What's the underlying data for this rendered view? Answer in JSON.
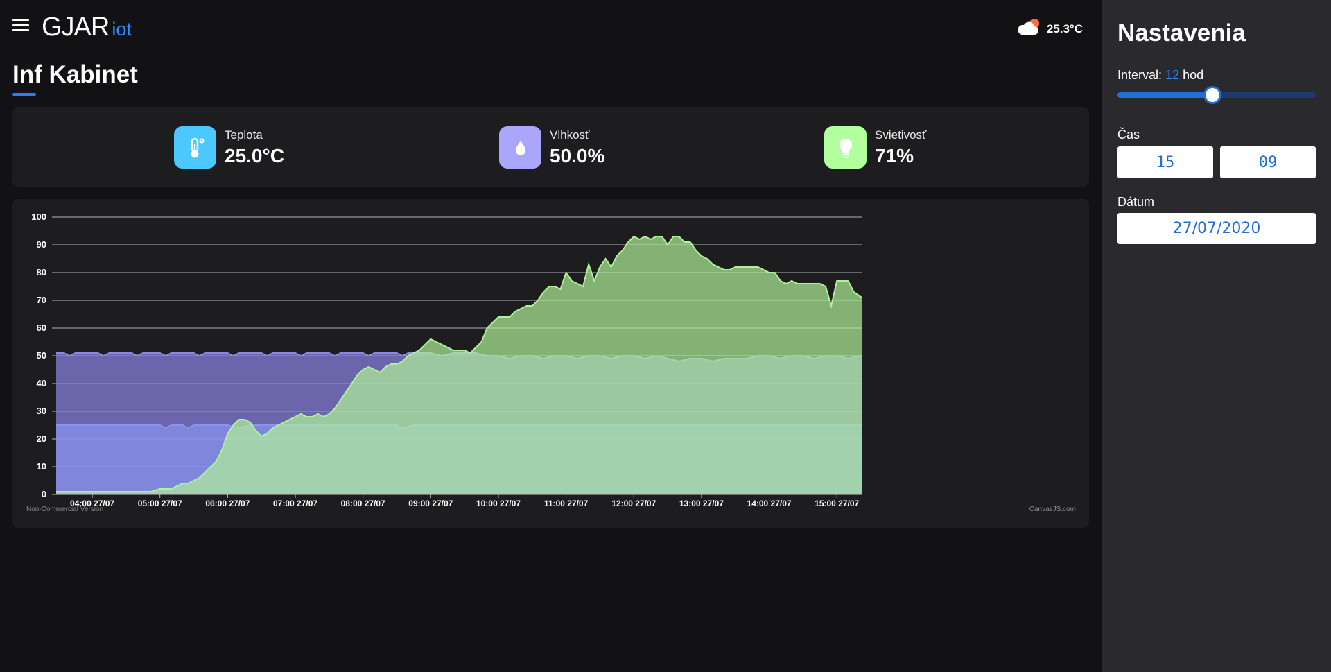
{
  "header": {
    "brand": "GJAR",
    "brand_sub": "iot",
    "weather_icon": "cloud-sun-icon",
    "weather_temp": "25.3°C"
  },
  "page": {
    "title": "Inf Kabinet"
  },
  "stats": [
    {
      "label": "Teplota",
      "value": "25.0°C",
      "icon": "thermometer-icon",
      "color": "#4dc8ff"
    },
    {
      "label": "Vlhkosť",
      "value": "50.0%",
      "icon": "water-drop-icon",
      "color": "#a9a6fb"
    },
    {
      "label": "Svietivosť",
      "value": "71%",
      "icon": "lightbulb-icon",
      "color": "#b2ff9e"
    }
  ],
  "chart_data": {
    "type": "area",
    "xlabel": "",
    "ylabel": "",
    "ylim": [
      0,
      100
    ],
    "yticks": [
      0,
      10,
      20,
      30,
      40,
      50,
      60,
      70,
      80,
      90,
      100
    ],
    "x_range": [
      "03:28",
      "15:22"
    ],
    "x_ticks": [
      "04:00 27/07",
      "05:00 27/07",
      "06:00 27/07",
      "07:00 27/07",
      "08:00 27/07",
      "09:00 27/07",
      "10:00 27/07",
      "11:00 27/07",
      "12:00 27/07",
      "13:00 27/07",
      "14:00 27/07",
      "15:00 27/07"
    ],
    "grid": true,
    "watermark_left": "Non-Commercial Version",
    "watermark_right": "CanvasJS.com",
    "series": [
      {
        "color": "#7fb4ff",
        "points": [
          [
            "03:28",
            25
          ],
          [
            "04:00",
            25
          ],
          [
            "04:30",
            25
          ],
          [
            "05:00",
            25
          ],
          [
            "05:05",
            24
          ],
          [
            "05:10",
            25
          ],
          [
            "05:20",
            25
          ],
          [
            "05:25",
            24
          ],
          [
            "05:30",
            25
          ],
          [
            "06:00",
            25
          ],
          [
            "06:10",
            24
          ],
          [
            "06:20",
            25
          ],
          [
            "07:00",
            25
          ],
          [
            "08:00",
            25
          ],
          [
            "08:30",
            25
          ],
          [
            "08:35",
            24
          ],
          [
            "08:45",
            25
          ],
          [
            "10:00",
            25
          ],
          [
            "11:00",
            25
          ],
          [
            "12:00",
            25
          ],
          [
            "13:00",
            25
          ],
          [
            "14:00",
            25
          ],
          [
            "15:00",
            25
          ],
          [
            "15:22",
            25
          ]
        ]
      },
      {
        "color": "#8d86e8",
        "points": [
          [
            "03:28",
            51
          ],
          [
            "03:35",
            51
          ],
          [
            "03:40",
            50
          ],
          [
            "03:45",
            51
          ],
          [
            "04:05",
            51
          ],
          [
            "04:10",
            50
          ],
          [
            "04:15",
            51
          ],
          [
            "04:35",
            51
          ],
          [
            "04:40",
            50
          ],
          [
            "04:45",
            51
          ],
          [
            "05:00",
            51
          ],
          [
            "05:05",
            50
          ],
          [
            "05:10",
            51
          ],
          [
            "05:30",
            51
          ],
          [
            "05:35",
            50
          ],
          [
            "05:40",
            51
          ],
          [
            "06:00",
            51
          ],
          [
            "06:05",
            50
          ],
          [
            "06:10",
            51
          ],
          [
            "06:30",
            51
          ],
          [
            "06:35",
            50
          ],
          [
            "06:40",
            51
          ],
          [
            "07:00",
            51
          ],
          [
            "07:05",
            50
          ],
          [
            "07:10",
            51
          ],
          [
            "07:30",
            51
          ],
          [
            "07:35",
            50
          ],
          [
            "07:40",
            51
          ],
          [
            "08:00",
            51
          ],
          [
            "08:05",
            50
          ],
          [
            "08:10",
            51
          ],
          [
            "08:30",
            51
          ],
          [
            "08:35",
            50
          ],
          [
            "08:40",
            51
          ],
          [
            "09:00",
            51
          ],
          [
            "09:10",
            50
          ],
          [
            "09:20",
            51
          ],
          [
            "09:40",
            51
          ],
          [
            "09:50",
            50
          ],
          [
            "10:00",
            50
          ],
          [
            "10:10",
            49
          ],
          [
            "10:20",
            50
          ],
          [
            "10:30",
            50
          ],
          [
            "10:40",
            49
          ],
          [
            "10:50",
            50
          ],
          [
            "11:00",
            50
          ],
          [
            "11:10",
            49
          ],
          [
            "11:20",
            50
          ],
          [
            "11:30",
            50
          ],
          [
            "11:40",
            49
          ],
          [
            "11:50",
            50
          ],
          [
            "12:00",
            50
          ],
          [
            "12:10",
            49
          ],
          [
            "12:20",
            50
          ],
          [
            "12:30",
            49
          ],
          [
            "12:40",
            48
          ],
          [
            "12:50",
            49
          ],
          [
            "13:00",
            49
          ],
          [
            "13:10",
            48
          ],
          [
            "13:20",
            49
          ],
          [
            "13:30",
            49
          ],
          [
            "13:40",
            49
          ],
          [
            "13:50",
            50
          ],
          [
            "14:00",
            50
          ],
          [
            "14:10",
            49
          ],
          [
            "14:20",
            50
          ],
          [
            "14:30",
            50
          ],
          [
            "14:40",
            49
          ],
          [
            "14:50",
            50
          ],
          [
            "15:00",
            50
          ],
          [
            "15:10",
            49
          ],
          [
            "15:20",
            50
          ],
          [
            "15:22",
            50
          ]
        ]
      },
      {
        "color": "#b0f29a",
        "points": [
          [
            "03:28",
            1
          ],
          [
            "04:00",
            1
          ],
          [
            "04:30",
            1
          ],
          [
            "04:52",
            1
          ],
          [
            "05:00",
            2
          ],
          [
            "05:10",
            2
          ],
          [
            "05:15",
            3
          ],
          [
            "05:20",
            4
          ],
          [
            "05:25",
            4
          ],
          [
            "05:30",
            5
          ],
          [
            "05:35",
            6
          ],
          [
            "05:40",
            8
          ],
          [
            "05:45",
            10
          ],
          [
            "05:50",
            12
          ],
          [
            "05:55",
            16
          ],
          [
            "06:00",
            22
          ],
          [
            "06:05",
            25
          ],
          [
            "06:10",
            27
          ],
          [
            "06:15",
            27
          ],
          [
            "06:20",
            26
          ],
          [
            "06:25",
            23
          ],
          [
            "06:30",
            21
          ],
          [
            "06:35",
            22
          ],
          [
            "06:40",
            24
          ],
          [
            "06:45",
            25
          ],
          [
            "06:50",
            26
          ],
          [
            "06:55",
            27
          ],
          [
            "07:00",
            28
          ],
          [
            "07:05",
            29
          ],
          [
            "07:10",
            28
          ],
          [
            "07:15",
            28
          ],
          [
            "07:20",
            29
          ],
          [
            "07:25",
            28
          ],
          [
            "07:30",
            29
          ],
          [
            "07:35",
            31
          ],
          [
            "07:40",
            34
          ],
          [
            "07:45",
            37
          ],
          [
            "07:50",
            40
          ],
          [
            "07:55",
            43
          ],
          [
            "08:00",
            45
          ],
          [
            "08:05",
            46
          ],
          [
            "08:10",
            45
          ],
          [
            "08:15",
            44
          ],
          [
            "08:20",
            46
          ],
          [
            "08:25",
            47
          ],
          [
            "08:30",
            47
          ],
          [
            "08:35",
            48
          ],
          [
            "08:40",
            50
          ],
          [
            "08:45",
            51
          ],
          [
            "08:50",
            52
          ],
          [
            "08:55",
            54
          ],
          [
            "09:00",
            56
          ],
          [
            "09:05",
            55
          ],
          [
            "09:10",
            54
          ],
          [
            "09:15",
            53
          ],
          [
            "09:20",
            52
          ],
          [
            "09:25",
            52
          ],
          [
            "09:30",
            52
          ],
          [
            "09:35",
            51
          ],
          [
            "09:40",
            53
          ],
          [
            "09:45",
            55
          ],
          [
            "09:50",
            60
          ],
          [
            "09:55",
            62
          ],
          [
            "10:00",
            64
          ],
          [
            "10:05",
            64
          ],
          [
            "10:10",
            64
          ],
          [
            "10:15",
            66
          ],
          [
            "10:20",
            67
          ],
          [
            "10:25",
            68
          ],
          [
            "10:30",
            68
          ],
          [
            "10:35",
            70
          ],
          [
            "10:40",
            73
          ],
          [
            "10:45",
            75
          ],
          [
            "10:50",
            75
          ],
          [
            "10:55",
            74
          ],
          [
            "11:00",
            80
          ],
          [
            "11:05",
            77
          ],
          [
            "11:10",
            76
          ],
          [
            "11:15",
            75
          ],
          [
            "11:20",
            83
          ],
          [
            "11:25",
            77
          ],
          [
            "11:30",
            82
          ],
          [
            "11:35",
            85
          ],
          [
            "11:40",
            82
          ],
          [
            "11:45",
            86
          ],
          [
            "11:50",
            88
          ],
          [
            "11:55",
            91
          ],
          [
            "12:00",
            93
          ],
          [
            "12:05",
            92
          ],
          [
            "12:10",
            93
          ],
          [
            "12:15",
            92
          ],
          [
            "12:20",
            93
          ],
          [
            "12:25",
            93
          ],
          [
            "12:30",
            90
          ],
          [
            "12:35",
            93
          ],
          [
            "12:40",
            93
          ],
          [
            "12:45",
            91
          ],
          [
            "12:50",
            91
          ],
          [
            "12:55",
            88
          ],
          [
            "13:00",
            86
          ],
          [
            "13:05",
            85
          ],
          [
            "13:10",
            83
          ],
          [
            "13:15",
            82
          ],
          [
            "13:20",
            81
          ],
          [
            "13:25",
            81
          ],
          [
            "13:30",
            82
          ],
          [
            "13:35",
            82
          ],
          [
            "13:40",
            82
          ],
          [
            "13:45",
            82
          ],
          [
            "13:50",
            82
          ],
          [
            "13:55",
            81
          ],
          [
            "14:00",
            80
          ],
          [
            "14:05",
            80
          ],
          [
            "14:10",
            77
          ],
          [
            "14:15",
            76
          ],
          [
            "14:20",
            77
          ],
          [
            "14:25",
            76
          ],
          [
            "14:30",
            76
          ],
          [
            "14:35",
            76
          ],
          [
            "14:40",
            76
          ],
          [
            "14:45",
            76
          ],
          [
            "14:50",
            75
          ],
          [
            "14:55",
            68
          ],
          [
            "15:00",
            77
          ],
          [
            "15:05",
            77
          ],
          [
            "15:10",
            77
          ],
          [
            "15:15",
            73
          ],
          [
            "15:22",
            71
          ]
        ]
      }
    ]
  },
  "sidebar": {
    "title": "Nastavenia",
    "interval_label": "Interval:",
    "interval_value": "12",
    "interval_unit": "hod",
    "interval_fraction": 0.478,
    "time_label": "Čas",
    "time_hour": "15",
    "time_minute": "09",
    "date_label": "Dátum",
    "date_value": "27/07/2020"
  }
}
